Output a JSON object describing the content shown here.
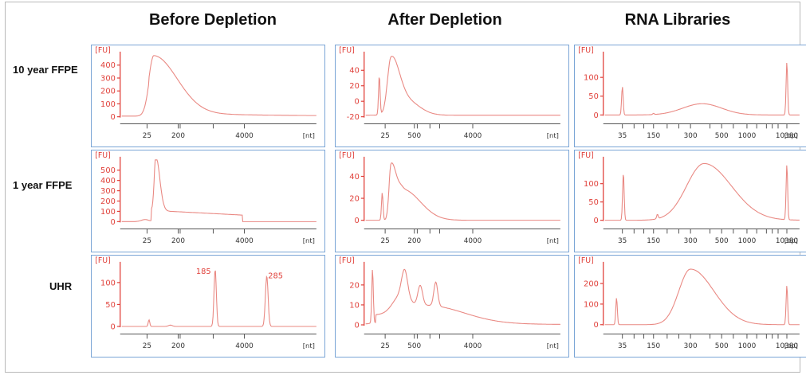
{
  "columns": [
    "Before Depletion",
    "After Depletion",
    "RNA Libraries"
  ],
  "rows": [
    "10 year FFPE",
    "1 year FFPE",
    "UHR"
  ],
  "colors": {
    "axis_red": "#e0403a",
    "trace": "#e98882",
    "panel_border": "#7aa5d6",
    "tick_gray": "#555555"
  },
  "chart_data": [
    {
      "type": "line",
      "column": "Before Depletion",
      "row": "10 year FFPE",
      "y_axis_label": "[FU]",
      "y_ticks": [
        0,
        100,
        200,
        300,
        400
      ],
      "ylim": [
        -30,
        480
      ],
      "x_unit_label": "[nt]",
      "x_tick_labels": [
        "25",
        "200",
        "4000"
      ],
      "series": [
        {
          "peaks": [
            {
              "x": 25,
              "height": 440
            }
          ],
          "baseline": 5
        }
      ]
    },
    {
      "type": "line",
      "column": "After Depletion",
      "row": "10 year FFPE",
      "y_axis_label": "[FU]",
      "y_ticks": [
        -20,
        0,
        20,
        40
      ],
      "ylim": [
        -25,
        60
      ],
      "x_unit_label": "[nt]",
      "x_tick_labels": [
        "25",
        "500",
        "4000"
      ],
      "series": [
        {
          "peaks": [
            {
              "x": 25,
              "height": 50
            },
            {
              "x": 200,
              "height": 45
            }
          ],
          "baseline": -18
        }
      ]
    },
    {
      "type": "line",
      "column": "RNA Libraries",
      "row": "10 year FFPE",
      "y_axis_label": "[FU]",
      "y_ticks": [
        0,
        50,
        100
      ],
      "ylim": [
        -15,
        160
      ],
      "x_unit_label": "[bp]",
      "x_tick_labels": [
        "35",
        "150",
        "300",
        "500",
        "1000",
        "10380"
      ],
      "series": [
        {
          "peaks": [
            {
              "x": 35,
              "height": 75
            },
            {
              "x": 300,
              "height": 30
            },
            {
              "x": 10380,
              "height": 140
            }
          ],
          "baseline": 0
        }
      ]
    },
    {
      "type": "line",
      "column": "Before Depletion",
      "row": "1 year FFPE",
      "y_axis_label": "[FU]",
      "y_ticks": [
        0,
        100,
        200,
        300,
        400,
        500
      ],
      "ylim": [
        -40,
        600
      ],
      "x_unit_label": "[nt]",
      "x_tick_labels": [
        "25",
        "200",
        "4000"
      ],
      "series": [
        {
          "peaks": [
            {
              "x": 25,
              "height": 530
            }
          ],
          "baseline": 0
        }
      ]
    },
    {
      "type": "line",
      "column": "After Depletion",
      "row": "1 year FFPE",
      "y_axis_label": "[FU]",
      "y_ticks": [
        0,
        20,
        40
      ],
      "ylim": [
        -5,
        55
      ],
      "x_unit_label": "[nt]",
      "x_tick_labels": [
        "25",
        "200",
        "4000"
      ],
      "series": [
        {
          "peaks": [
            {
              "x": 25,
              "height": 48
            },
            {
              "x": 200,
              "height": 30
            }
          ],
          "baseline": 0
        }
      ]
    },
    {
      "type": "line",
      "column": "RNA Libraries",
      "row": "1 year FFPE",
      "y_axis_label": "[FU]",
      "y_ticks": [
        0,
        50,
        100
      ],
      "ylim": [
        -15,
        165
      ],
      "x_unit_label": "[bp]",
      "x_tick_labels": [
        "35",
        "150",
        "300",
        "500",
        "1000",
        "10380"
      ],
      "series": [
        {
          "peaks": [
            {
              "x": 35,
              "height": 130
            },
            {
              "x": 300,
              "height": 155
            },
            {
              "x": 10380,
              "height": 150
            }
          ],
          "baseline": 0
        }
      ]
    },
    {
      "type": "line",
      "column": "Before Depletion",
      "row": "UHR",
      "y_axis_label": "[FU]",
      "y_ticks": [
        0,
        50,
        100
      ],
      "ylim": [
        -10,
        140
      ],
      "x_unit_label": "[nt]",
      "x_tick_labels": [
        "25",
        "200",
        "4000"
      ],
      "series": [
        {
          "peaks": [
            {
              "x": 25,
              "height": 15
            },
            {
              "x": "185",
              "height": 130
            },
            {
              "x": "285",
              "height": 115
            }
          ],
          "baseline": 0
        }
      ],
      "annotations": [
        "185",
        "285"
      ]
    },
    {
      "type": "line",
      "column": "After Depletion",
      "row": "UHR",
      "y_axis_label": "[FU]",
      "y_ticks": [
        0,
        10,
        20
      ],
      "ylim": [
        -3,
        30
      ],
      "x_unit_label": "[nt]",
      "x_tick_labels": [
        "25",
        "500",
        "4000"
      ],
      "series": [
        {
          "peaks": [
            {
              "x": 25,
              "height": 27
            },
            {
              "x": 500,
              "height": 22
            }
          ],
          "baseline": 0
        }
      ]
    },
    {
      "type": "line",
      "column": "RNA Libraries",
      "row": "UHR",
      "y_axis_label": "[FU]",
      "y_ticks": [
        0,
        100,
        200
      ],
      "ylim": [
        -30,
        290
      ],
      "x_unit_label": "[bp]",
      "x_tick_labels": [
        "35",
        "150",
        "300",
        "500",
        "1000",
        "10380"
      ],
      "series": [
        {
          "peaks": [
            {
              "x": 35,
              "height": 130
            },
            {
              "x": 300,
              "height": 270
            },
            {
              "x": 10380,
              "height": 190
            }
          ],
          "baseline": 0
        }
      ]
    }
  ]
}
